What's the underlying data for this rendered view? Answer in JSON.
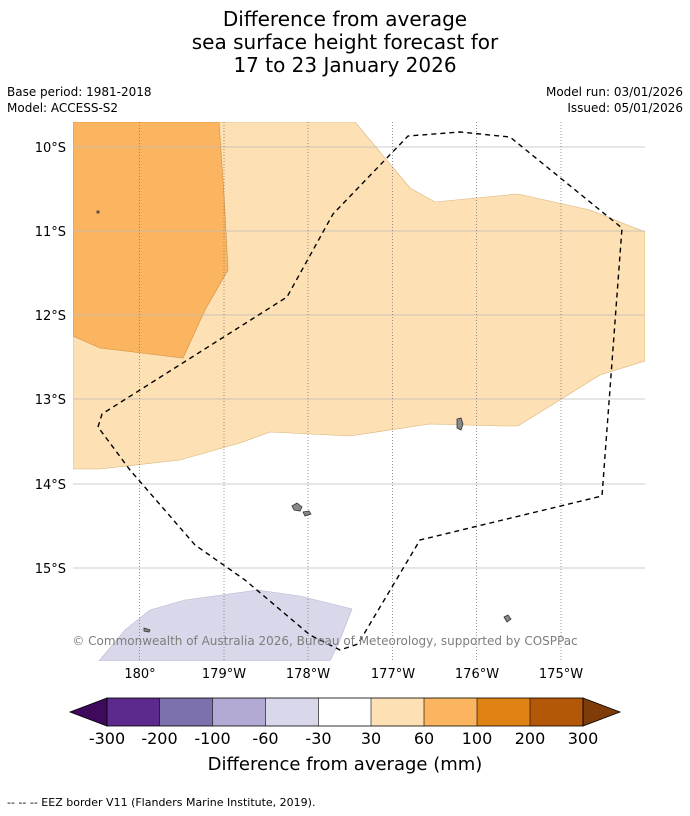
{
  "title": {
    "line1": "Difference from average",
    "line2": "sea surface height forecast for",
    "line3": "17 to 23 January 2026"
  },
  "meta": {
    "base_period": "Base period: 1981-2018",
    "model": "Model: ACCESS-S2",
    "model_run": "Model run: 03/01/2026",
    "issued": "Issued: 05/01/2026"
  },
  "map": {
    "lat_labels": [
      "10°S",
      "11°S",
      "12°S",
      "13°S",
      "14°S",
      "15°S"
    ],
    "lon_labels": [
      "180°",
      "179°W",
      "178°W",
      "177°W",
      "176°W",
      "175°W"
    ],
    "copyright": "© Commonwealth of Australia 2026, Bureau of Meteorology, supported by COSPPac"
  },
  "colorbar": {
    "ticks": [
      "-300",
      "-200",
      "-100",
      "-60",
      "-30",
      "30",
      "60",
      "100",
      "200",
      "300"
    ],
    "colors": [
      "#3f0a5e",
      "#5b2a8c",
      "#7e70ad",
      "#b2aad3",
      "#d8d8ea",
      "#ffffff",
      "#fde0b3",
      "#fbb45f",
      "#e08213",
      "#b35806",
      "#7f3b08"
    ],
    "label": "Difference from average (mm)"
  },
  "footer": {
    "legend": "--  --  -- EEZ border V11 (Flanders Marine Institute, 2019)."
  }
}
